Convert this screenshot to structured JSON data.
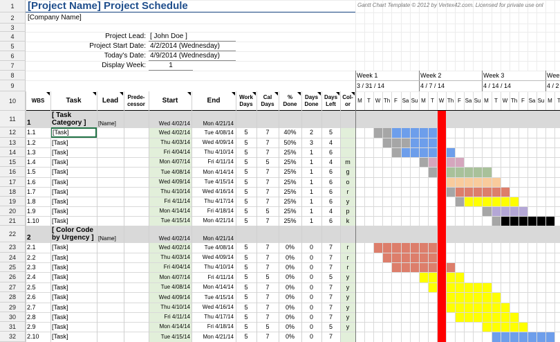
{
  "title": "[Project Name] Project Schedule",
  "company": "[Company Name]",
  "copyright": "Gantt Chart Template © 2012 by Vertex42.com. Licensed for private use onl",
  "info": [
    {
      "label": "Project Lead:",
      "value": "[ John Doe ]"
    },
    {
      "label": "Project Start Date:",
      "value": "4/2/2014 (Wednesday)"
    },
    {
      "label": "Today's Date:",
      "value": "4/9/2014 (Wednesday)"
    },
    {
      "label": "Display Week:",
      "value": "1"
    }
  ],
  "row_numbers": [
    "1",
    "2",
    "3",
    "4",
    "5",
    "6",
    "7",
    "8",
    "9",
    "10",
    "11",
    "12",
    "13",
    "14",
    "15",
    "16",
    "17",
    "18",
    "19",
    "20",
    "21",
    "22",
    "23",
    "24",
    "25",
    "26",
    "27",
    "28",
    "29",
    "30",
    "31",
    "32"
  ],
  "headers": {
    "wbs": "WBS",
    "task": "Task",
    "lead": "Lead",
    "pred": "Prede-\ncessor",
    "start": "Start",
    "end": "End",
    "work": "Work\nDays",
    "cal": "Cal\nDays",
    "pct": "%\nDone",
    "done": "Days\nDone",
    "left": "Days\nLeft",
    "color": "Col-\nor"
  },
  "weeks": [
    {
      "label": "Week 1",
      "date": "3 / 31 / 14"
    },
    {
      "label": "Week 2",
      "date": "4 / 7 / 14"
    },
    {
      "label": "Week 3",
      "date": "4 / 14 / 14"
    },
    {
      "label": "Week",
      "date": "4 / 2"
    }
  ],
  "day_letters": [
    "M",
    "T",
    "W",
    "Th",
    "F",
    "Sa",
    "Su",
    "M",
    "T",
    "W",
    "Th",
    "F",
    "Sa",
    "Su",
    "M",
    "T",
    "W",
    "Th",
    "F",
    "Sa",
    "Su",
    "M",
    "T"
  ],
  "today_day_index": 9,
  "colors": {
    "blue": "#6d9eeb",
    "pink": "#d5a6bd",
    "olive": "#a8c19a",
    "orange": "#f9cb9c",
    "red": "#dd7e6b",
    "yellow": "#ffff00",
    "purple": "#b4a7d6",
    "black": "#000000",
    "gray": "#a6a6a6",
    "today": "#ff0000"
  },
  "rows": [
    {
      "type": "cat",
      "wbs": "1",
      "task": "[ Task\nCategory ]",
      "lead": "[Name]",
      "start": "Wed 4/02/14",
      "end": "Mon 4/21/14",
      "work": "",
      "cal": "",
      "pct": "",
      "done": "",
      "left": "",
      "color": "",
      "bar": null
    },
    {
      "type": "task",
      "wbs": "1.1",
      "task": "[Task]",
      "lead": "",
      "start": "Wed 4/02/14",
      "end": "Tue 4/08/14",
      "work": "5",
      "cal": "7",
      "pct": "40%",
      "done": "2",
      "left": "5",
      "color": "",
      "bar": {
        "start": 2,
        "len": 7,
        "done": 2,
        "fill": "blue"
      }
    },
    {
      "type": "task",
      "wbs": "1.2",
      "task": "[Task]",
      "lead": "",
      "start": "Thu 4/03/14",
      "end": "Wed 4/09/14",
      "work": "5",
      "cal": "7",
      "pct": "50%",
      "done": "3",
      "left": "4",
      "color": "",
      "bar": {
        "start": 3,
        "len": 7,
        "done": 3,
        "fill": "blue"
      }
    },
    {
      "type": "task",
      "wbs": "1.3",
      "task": "[Task]",
      "lead": "",
      "start": "Fri 4/04/14",
      "end": "Thu 4/10/14",
      "work": "5",
      "cal": "7",
      "pct": "25%",
      "done": "1",
      "left": "6",
      "color": "",
      "bar": {
        "start": 4,
        "len": 7,
        "done": 1,
        "fill": "blue"
      }
    },
    {
      "type": "task",
      "wbs": "1.4",
      "task": "[Task]",
      "lead": "",
      "start": "Mon 4/07/14",
      "end": "Fri 4/11/14",
      "work": "5",
      "cal": "5",
      "pct": "25%",
      "done": "1",
      "left": "4",
      "color": "m",
      "bar": {
        "start": 7,
        "len": 5,
        "done": 1,
        "fill": "pink"
      }
    },
    {
      "type": "task",
      "wbs": "1.5",
      "task": "[Task]",
      "lead": "",
      "start": "Tue 4/08/14",
      "end": "Mon 4/14/14",
      "work": "5",
      "cal": "7",
      "pct": "25%",
      "done": "1",
      "left": "6",
      "color": "g",
      "bar": {
        "start": 8,
        "len": 7,
        "done": 1,
        "fill": "olive"
      }
    },
    {
      "type": "task",
      "wbs": "1.6",
      "task": "[Task]",
      "lead": "",
      "start": "Wed 4/09/14",
      "end": "Tue 4/15/14",
      "work": "5",
      "cal": "7",
      "pct": "25%",
      "done": "1",
      "left": "6",
      "color": "o",
      "bar": {
        "start": 9,
        "len": 7,
        "done": 1,
        "fill": "orange"
      }
    },
    {
      "type": "task",
      "wbs": "1.7",
      "task": "[Task]",
      "lead": "",
      "start": "Thu 4/10/14",
      "end": "Wed 4/16/14",
      "work": "5",
      "cal": "7",
      "pct": "25%",
      "done": "1",
      "left": "6",
      "color": "r",
      "bar": {
        "start": 10,
        "len": 7,
        "done": 1,
        "fill": "red"
      }
    },
    {
      "type": "task",
      "wbs": "1.8",
      "task": "[Task]",
      "lead": "",
      "start": "Fri 4/11/14",
      "end": "Thu 4/17/14",
      "work": "5",
      "cal": "7",
      "pct": "25%",
      "done": "1",
      "left": "6",
      "color": "y",
      "bar": {
        "start": 11,
        "len": 7,
        "done": 1,
        "fill": "yellow"
      }
    },
    {
      "type": "task",
      "wbs": "1.9",
      "task": "[Task]",
      "lead": "",
      "start": "Mon 4/14/14",
      "end": "Fri 4/18/14",
      "work": "5",
      "cal": "5",
      "pct": "25%",
      "done": "1",
      "left": "4",
      "color": "p",
      "bar": {
        "start": 14,
        "len": 5,
        "done": 1,
        "fill": "purple"
      }
    },
    {
      "type": "task",
      "wbs": "1.10",
      "task": "[Task]",
      "lead": "",
      "start": "Tue 4/15/14",
      "end": "Mon 4/21/14",
      "work": "5",
      "cal": "7",
      "pct": "25%",
      "done": "1",
      "left": "6",
      "color": "k",
      "bar": {
        "start": 15,
        "len": 7,
        "done": 1,
        "fill": "black"
      }
    },
    {
      "type": "cat",
      "wbs": "2",
      "task": "[ Color Code\nby Urgency ]",
      "lead": "[Name]",
      "start": "Wed 4/02/14",
      "end": "Mon 4/21/14",
      "work": "",
      "cal": "",
      "pct": "",
      "done": "",
      "left": "",
      "color": "",
      "bar": null
    },
    {
      "type": "task",
      "wbs": "2.1",
      "task": "[Task]",
      "lead": "",
      "start": "Wed 4/02/14",
      "end": "Tue 4/08/14",
      "work": "5",
      "cal": "7",
      "pct": "0%",
      "done": "0",
      "left": "7",
      "color": "r",
      "bar": {
        "start": 2,
        "len": 7,
        "done": 0,
        "fill": "red"
      }
    },
    {
      "type": "task",
      "wbs": "2.2",
      "task": "[Task]",
      "lead": "",
      "start": "Thu 4/03/14",
      "end": "Wed 4/09/14",
      "work": "5",
      "cal": "7",
      "pct": "0%",
      "done": "0",
      "left": "7",
      "color": "r",
      "bar": {
        "start": 3,
        "len": 7,
        "done": 0,
        "fill": "red"
      }
    },
    {
      "type": "task",
      "wbs": "2.3",
      "task": "[Task]",
      "lead": "",
      "start": "Fri 4/04/14",
      "end": "Thu 4/10/14",
      "work": "5",
      "cal": "7",
      "pct": "0%",
      "done": "0",
      "left": "7",
      "color": "r",
      "bar": {
        "start": 4,
        "len": 7,
        "done": 0,
        "fill": "red"
      }
    },
    {
      "type": "task",
      "wbs": "2.4",
      "task": "[Task]",
      "lead": "",
      "start": "Mon 4/07/14",
      "end": "Fri 4/11/14",
      "work": "5",
      "cal": "5",
      "pct": "0%",
      "done": "0",
      "left": "5",
      "color": "y",
      "bar": {
        "start": 7,
        "len": 5,
        "done": 0,
        "fill": "yellow"
      }
    },
    {
      "type": "task",
      "wbs": "2.5",
      "task": "[Task]",
      "lead": "",
      "start": "Tue 4/08/14",
      "end": "Mon 4/14/14",
      "work": "5",
      "cal": "7",
      "pct": "0%",
      "done": "0",
      "left": "7",
      "color": "y",
      "bar": {
        "start": 8,
        "len": 7,
        "done": 0,
        "fill": "yellow"
      }
    },
    {
      "type": "task",
      "wbs": "2.6",
      "task": "[Task]",
      "lead": "",
      "start": "Wed 4/09/14",
      "end": "Tue 4/15/14",
      "work": "5",
      "cal": "7",
      "pct": "0%",
      "done": "0",
      "left": "7",
      "color": "y",
      "bar": {
        "start": 9,
        "len": 7,
        "done": 0,
        "fill": "yellow"
      }
    },
    {
      "type": "task",
      "wbs": "2.7",
      "task": "[Task]",
      "lead": "",
      "start": "Thu 4/10/14",
      "end": "Wed 4/16/14",
      "work": "5",
      "cal": "7",
      "pct": "0%",
      "done": "0",
      "left": "7",
      "color": "y",
      "bar": {
        "start": 10,
        "len": 7,
        "done": 0,
        "fill": "yellow"
      }
    },
    {
      "type": "task",
      "wbs": "2.8",
      "task": "[Task]",
      "lead": "",
      "start": "Fri 4/11/14",
      "end": "Thu 4/17/14",
      "work": "5",
      "cal": "7",
      "pct": "0%",
      "done": "0",
      "left": "7",
      "color": "y",
      "bar": {
        "start": 11,
        "len": 7,
        "done": 0,
        "fill": "yellow"
      }
    },
    {
      "type": "task",
      "wbs": "2.9",
      "task": "[Task]",
      "lead": "",
      "start": "Mon 4/14/14",
      "end": "Fri 4/18/14",
      "work": "5",
      "cal": "5",
      "pct": "0%",
      "done": "0",
      "left": "5",
      "color": "y",
      "bar": {
        "start": 14,
        "len": 5,
        "done": 0,
        "fill": "yellow"
      }
    },
    {
      "type": "task",
      "wbs": "2.10",
      "task": "[Task]",
      "lead": "",
      "start": "Tue 4/15/14",
      "end": "Mon 4/21/14",
      "work": "5",
      "cal": "7",
      "pct": "0%",
      "done": "0",
      "left": "7",
      "color": "",
      "bar": {
        "start": 15,
        "len": 7,
        "done": 0,
        "fill": "blue"
      }
    }
  ]
}
